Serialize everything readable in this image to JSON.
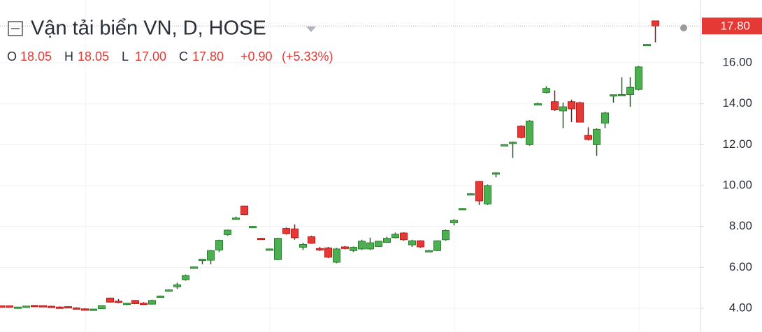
{
  "chart_data": {
    "type": "candlestick",
    "title": "Vận tải biển VN, D, HOSE",
    "ohlc_legend": [
      {
        "key": "O",
        "value": "18.05"
      },
      {
        "key": "H",
        "value": "18.05"
      },
      {
        "key": "L",
        "value": "17.00"
      },
      {
        "key": "C",
        "value": "17.80"
      }
    ],
    "change": "+0.90",
    "change_percent": "(+5.33%)",
    "last_price": {
      "value": 17.8,
      "label": "17.80"
    },
    "up_color": "#4caf50",
    "down_color": "#e53935",
    "ylim": [
      2.84,
      19.07
    ],
    "yticks": [
      {
        "value": 4,
        "label": "4.00"
      },
      {
        "value": 6,
        "label": "6.00"
      },
      {
        "value": 8,
        "label": "8.00"
      },
      {
        "value": 10,
        "label": "10.00"
      },
      {
        "value": 12,
        "label": "12.00"
      },
      {
        "value": 14,
        "label": "14.00"
      },
      {
        "value": 16,
        "label": "16.00"
      }
    ],
    "grid": true,
    "open": [
      4.12,
      4.12,
      4.05,
      4.05,
      4.14,
      4.13,
      4.1,
      4.06,
      4.08,
      4.02,
      3.97,
      3.95,
      3.98,
      4.5,
      4.35,
      4.18,
      4.38,
      4.25,
      4.2,
      4.58,
      4.88,
      5.05,
      5.4,
      5.98,
      6.38,
      6.35,
      6.85,
      7.6,
      8.38,
      9.0,
      7.98,
      7.42,
      6.9,
      6.38,
      7.9,
      7.88,
      6.98,
      7.5,
      6.92,
      6.95,
      6.25,
      7.0,
      6.82,
      6.9,
      6.9,
      7.02,
      7.22,
      7.45,
      7.68,
      7.1,
      7.3,
      6.8,
      6.82,
      7.35,
      8.18,
      8.86,
      9.58,
      10.2,
      9.1,
      10.6,
      11.98,
      12.1,
      12.9,
      12.0,
      13.98,
      14.55,
      14.1,
      13.65,
      14.1,
      14.05,
      12.45,
      12.0,
      13.05,
      14.42,
      14.45,
      14.45,
      14.7,
      16.88,
      18.05
    ],
    "high": [
      4.14,
      4.13,
      4.07,
      4.12,
      4.15,
      4.14,
      4.12,
      4.09,
      4.1,
      4.05,
      4.0,
      3.97,
      4.15,
      4.52,
      4.45,
      4.27,
      4.4,
      4.3,
      4.42,
      4.62,
      4.93,
      5.25,
      5.65,
      6.05,
      6.42,
      6.85,
      7.35,
      7.85,
      8.48,
      9.02,
      8.02,
      7.45,
      6.92,
      7.45,
      7.95,
      8.1,
      7.2,
      7.55,
      7.0,
      7.0,
      6.95,
      7.05,
      7.02,
      7.35,
      7.45,
      7.3,
      7.5,
      7.7,
      7.72,
      7.35,
      7.32,
      6.85,
      7.32,
      7.85,
      8.35,
      8.9,
      9.62,
      10.22,
      10.05,
      10.65,
      12.02,
      12.15,
      12.95,
      13.2,
      14.05,
      14.85,
      14.65,
      14.05,
      14.2,
      14.1,
      12.85,
      12.8,
      13.6,
      14.45,
      15.3,
      15.3,
      15.85,
      16.92,
      18.05
    ],
    "low": [
      4.07,
      4.08,
      4.03,
      4.04,
      4.1,
      4.1,
      4.06,
      4.0,
      4.03,
      3.97,
      3.92,
      3.93,
      3.97,
      4.28,
      4.25,
      4.15,
      4.2,
      4.18,
      4.18,
      4.55,
      4.85,
      4.95,
      5.35,
      5.95,
      6.15,
      6.15,
      6.75,
      7.55,
      8.35,
      8.55,
      7.96,
      7.38,
      6.88,
      6.35,
      7.6,
      7.35,
      6.85,
      7.15,
      6.8,
      6.45,
      6.2,
      6.88,
      6.75,
      6.85,
      6.85,
      7.0,
      7.2,
      7.42,
      7.3,
      7.0,
      6.95,
      6.75,
      6.8,
      7.3,
      8.05,
      8.84,
      9.56,
      9.05,
      9.05,
      10.4,
      11.96,
      11.35,
      12.3,
      11.95,
      13.95,
      14.5,
      13.65,
      12.8,
      13.1,
      13.1,
      12.2,
      11.45,
      12.8,
      14.05,
      14.4,
      13.85,
      14.65,
      16.85,
      17.0
    ],
    "close": [
      4.08,
      4.09,
      4.06,
      4.11,
      4.11,
      4.1,
      4.07,
      4.02,
      4.04,
      3.98,
      3.94,
      3.96,
      4.13,
      4.3,
      4.28,
      4.25,
      4.22,
      4.2,
      4.38,
      4.6,
      4.9,
      5.15,
      5.6,
      6.02,
      6.4,
      6.82,
      7.32,
      7.82,
      8.42,
      8.58,
      8.0,
      7.4,
      6.9,
      7.42,
      7.65,
      7.45,
      7.12,
      7.18,
      6.85,
      6.5,
      6.9,
      6.92,
      6.98,
      7.28,
      7.2,
      7.28,
      7.42,
      7.62,
      7.35,
      7.3,
      7.0,
      6.82,
      7.3,
      7.8,
      8.3,
      8.88,
      9.6,
      9.25,
      10.0,
      10.62,
      12.0,
      12.12,
      12.35,
      13.15,
      14.0,
      14.75,
      13.7,
      13.85,
      13.75,
      13.1,
      12.25,
      12.75,
      13.55,
      14.44,
      14.45,
      14.8,
      15.8,
      16.9,
      17.8
    ]
  }
}
